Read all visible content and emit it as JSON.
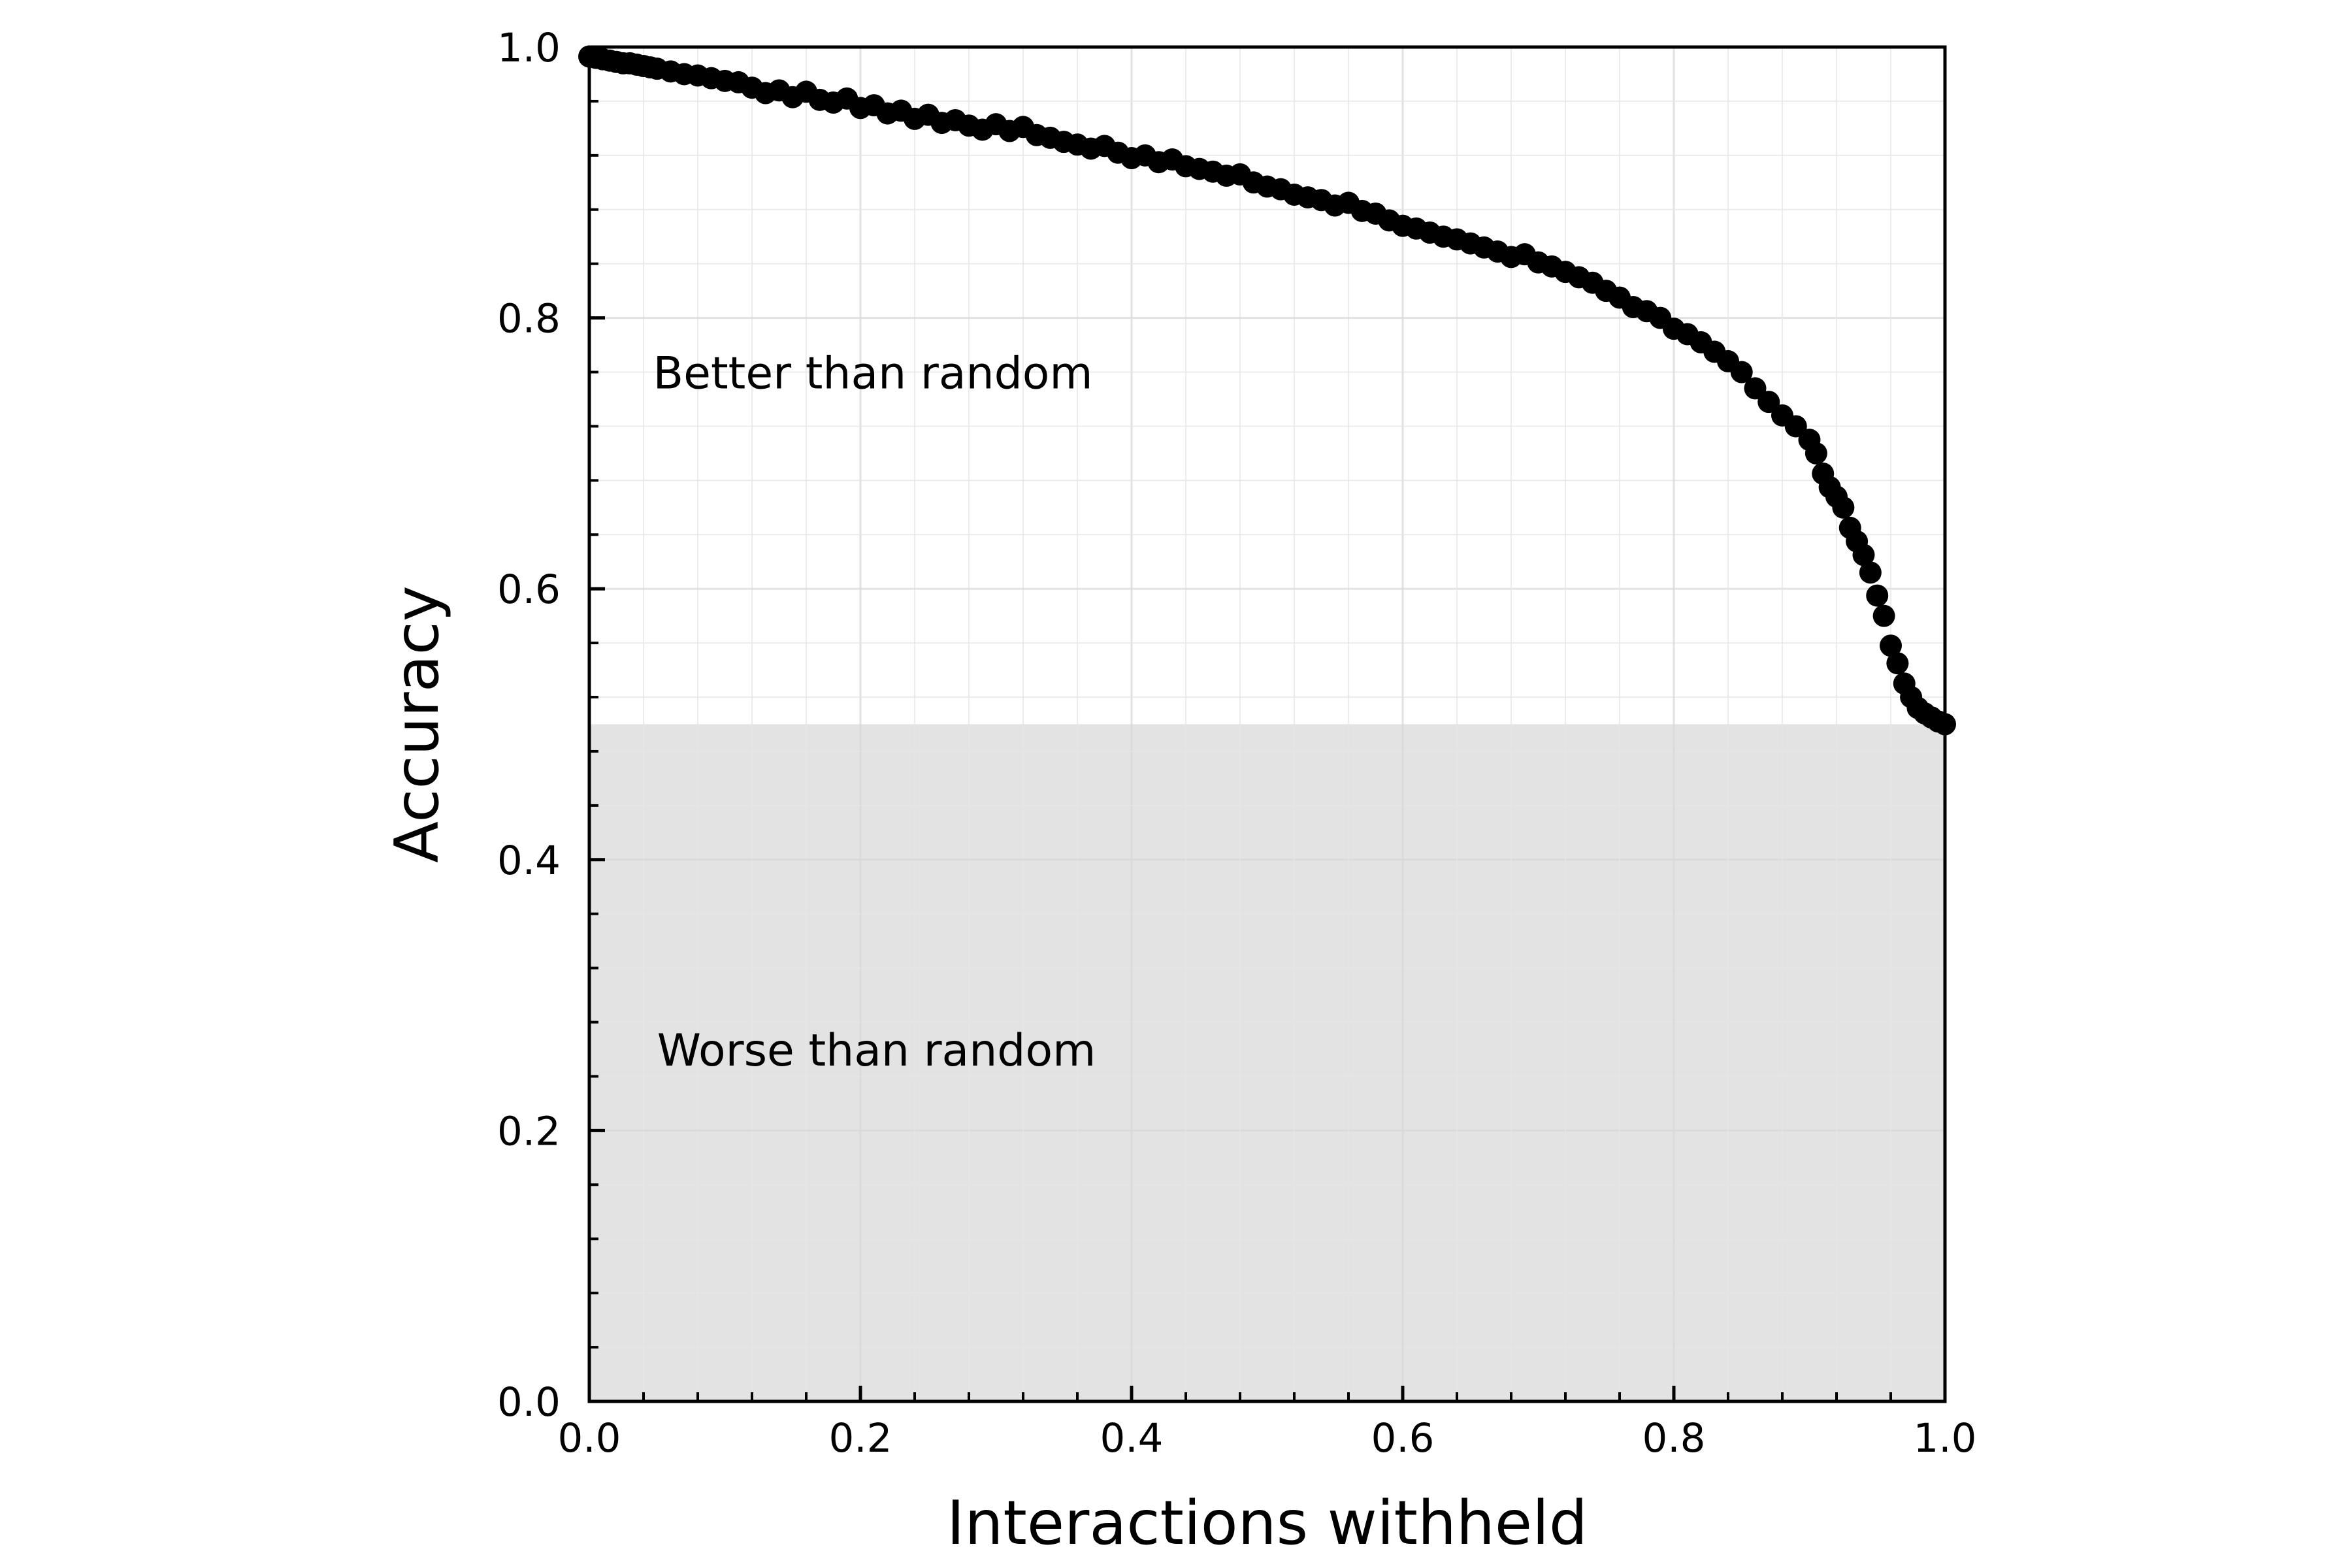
{
  "chart_data": {
    "type": "scatter",
    "xlabel": "Interactions withheld",
    "ylabel": "Accuracy",
    "xlim": [
      0,
      1
    ],
    "ylim": [
      0,
      1
    ],
    "x_ticks": [
      "0.0",
      "0.2",
      "0.4",
      "0.6",
      "0.8",
      "1.0"
    ],
    "y_ticks": [
      "0.0",
      "0.2",
      "0.4",
      "0.6",
      "0.8",
      "1.0"
    ],
    "grid": true,
    "legend": "none",
    "colors": {
      "points": "#000000",
      "shaded_region": "#e3e3e3",
      "grid": "#e6e6e6"
    },
    "shaded_region": {
      "y_from": 0,
      "y_to": 0.5
    },
    "annotations": [
      {
        "text": "Better than random",
        "x": 0.047,
        "y": 0.748
      },
      {
        "text": "Worse than random",
        "x": 0.05,
        "y": 0.248
      }
    ],
    "series": [
      {
        "x": [
          0.0,
          0.005,
          0.01,
          0.015,
          0.02,
          0.025,
          0.03,
          0.035,
          0.04,
          0.045,
          0.05,
          0.06,
          0.07,
          0.08,
          0.09,
          0.1,
          0.11,
          0.12,
          0.13,
          0.14,
          0.15,
          0.16,
          0.17,
          0.18,
          0.19,
          0.2,
          0.21,
          0.22,
          0.23,
          0.24,
          0.25,
          0.26,
          0.27,
          0.28,
          0.29,
          0.3,
          0.31,
          0.32,
          0.33,
          0.34,
          0.35,
          0.36,
          0.37,
          0.38,
          0.39,
          0.4,
          0.41,
          0.42,
          0.43,
          0.44,
          0.45,
          0.46,
          0.47,
          0.48,
          0.49,
          0.5,
          0.51,
          0.52,
          0.53,
          0.54,
          0.55,
          0.56,
          0.57,
          0.58,
          0.59,
          0.6,
          0.61,
          0.62,
          0.63,
          0.64,
          0.65,
          0.66,
          0.67,
          0.68,
          0.69,
          0.7,
          0.71,
          0.72,
          0.73,
          0.74,
          0.75,
          0.76,
          0.77,
          0.78,
          0.79,
          0.8,
          0.81,
          0.82,
          0.83,
          0.84,
          0.85,
          0.86,
          0.87,
          0.88,
          0.89,
          0.9,
          0.905,
          0.91,
          0.915,
          0.92,
          0.925,
          0.93,
          0.935,
          0.94,
          0.945,
          0.95,
          0.955,
          0.96,
          0.965,
          0.97,
          0.975,
          0.98,
          0.985,
          0.99,
          0.995,
          1.0
        ],
        "y": [
          0.993,
          0.992,
          0.991,
          0.99,
          0.989,
          0.988,
          0.988,
          0.987,
          0.986,
          0.985,
          0.984,
          0.982,
          0.98,
          0.979,
          0.977,
          0.975,
          0.974,
          0.97,
          0.966,
          0.968,
          0.963,
          0.967,
          0.961,
          0.959,
          0.962,
          0.955,
          0.957,
          0.951,
          0.953,
          0.947,
          0.95,
          0.944,
          0.946,
          0.942,
          0.939,
          0.943,
          0.938,
          0.941,
          0.935,
          0.933,
          0.93,
          0.928,
          0.925,
          0.927,
          0.922,
          0.918,
          0.92,
          0.915,
          0.917,
          0.912,
          0.91,
          0.908,
          0.905,
          0.906,
          0.9,
          0.897,
          0.895,
          0.891,
          0.889,
          0.887,
          0.883,
          0.885,
          0.879,
          0.877,
          0.872,
          0.868,
          0.866,
          0.863,
          0.86,
          0.858,
          0.855,
          0.852,
          0.849,
          0.845,
          0.847,
          0.841,
          0.838,
          0.834,
          0.83,
          0.826,
          0.82,
          0.815,
          0.808,
          0.805,
          0.8,
          0.792,
          0.788,
          0.782,
          0.775,
          0.768,
          0.76,
          0.748,
          0.738,
          0.728,
          0.72,
          0.71,
          0.7,
          0.685,
          0.675,
          0.668,
          0.66,
          0.645,
          0.635,
          0.625,
          0.612,
          0.595,
          0.58,
          0.558,
          0.545,
          0.53,
          0.52,
          0.512,
          0.508,
          0.505,
          0.502,
          0.5
        ]
      }
    ]
  }
}
